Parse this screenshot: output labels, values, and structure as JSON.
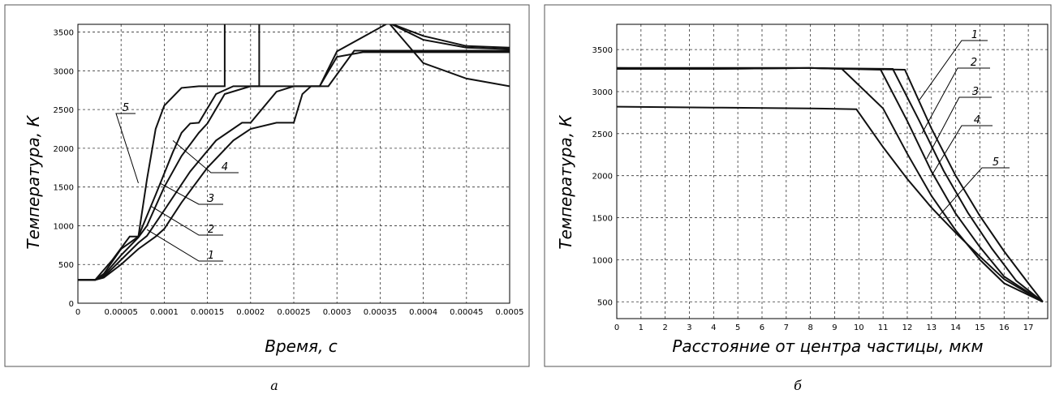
{
  "chart_data": [
    {
      "type": "line",
      "panel_label": "а",
      "title": "",
      "xlabel": "Время, с",
      "ylabel": "Температура, К",
      "xlim": [
        0,
        0.0005
      ],
      "ylim": [
        0,
        3600
      ],
      "xticks": [
        "0",
        "0.00005",
        "0.0001",
        "0.00015",
        "0.0002",
        "0.00025",
        "0.0003",
        "0.00035",
        "0.0004",
        "0.00045",
        "0.0005"
      ],
      "yticks": [
        "0",
        "500",
        "1000",
        "1500",
        "2000",
        "2500",
        "3000",
        "3500"
      ],
      "grid": true,
      "series": [
        {
          "name": "1",
          "x": [
            0,
            2e-05,
            3e-05,
            5e-05,
            7e-05,
            9e-05,
            0.0001,
            0.00012,
            0.00015,
            0.00018,
            0.0002,
            0.00023,
            0.00025,
            0.00026,
            0.00027,
            0.00029,
            0.00032,
            0.0004,
            0.0005
          ],
          "y": [
            300,
            300,
            330,
            500,
            700,
            860,
            960,
            1300,
            1750,
            2100,
            2250,
            2330,
            2330,
            2700,
            2800,
            2800,
            3260,
            3260,
            3260
          ]
        },
        {
          "name": "2",
          "x": [
            0,
            2e-05,
            3e-05,
            5e-05,
            7e-05,
            8e-05,
            0.0001,
            0.00013,
            0.00016,
            0.00019,
            0.0002,
            0.00023,
            0.00025,
            0.00028,
            0.0003,
            0.00033,
            0.0004,
            0.0005
          ],
          "y": [
            300,
            300,
            340,
            560,
            780,
            870,
            1200,
            1700,
            2100,
            2330,
            2330,
            2730,
            2800,
            2800,
            3180,
            3240,
            3240,
            3240
          ]
        },
        {
          "name": "3",
          "x": [
            0,
            2e-05,
            3e-05,
            5e-05,
            7e-05,
            8e-05,
            0.0001,
            0.00012,
            0.00014,
            0.00015,
            0.00017,
            0.0002,
            0.00025,
            0.00028,
            0.0003,
            0.00036,
            0.0004,
            0.00045,
            0.0005
          ],
          "y": [
            300,
            300,
            360,
            620,
            850,
            1000,
            1500,
            1900,
            2200,
            2320,
            2700,
            2800,
            2800,
            2800,
            3250,
            3620,
            3400,
            3300,
            3280
          ]
        },
        {
          "name": "4",
          "x": [
            0,
            2e-05,
            3e-05,
            5e-05,
            7e-05,
            9e-05,
            0.00011,
            0.00012,
            0.00013,
            0.00014,
            0.00016,
            0.00018,
            0.0002,
            0.00021,
            0.00021,
            0.00036,
            0.0004,
            0.00045,
            0.0005
          ],
          "y": [
            300,
            300,
            380,
            700,
            860,
            1400,
            1950,
            2200,
            2320,
            2330,
            2700,
            2800,
            2800,
            2800,
            3620,
            3620,
            3450,
            3320,
            3300
          ]
        },
        {
          "name": "5",
          "x": [
            0,
            2e-05,
            4e-05,
            6e-05,
            7e-05,
            8e-05,
            9e-05,
            0.0001,
            0.00012,
            0.00014,
            0.00017,
            0.00017,
            0.00036,
            0.0004,
            0.00045,
            0.0005
          ],
          "y": [
            300,
            300,
            560,
            860,
            860,
            1600,
            2250,
            2550,
            2780,
            2800,
            2800,
            3620,
            3620,
            3100,
            2900,
            2800
          ]
        }
      ],
      "curve_labels": [
        "5",
        "4",
        "3",
        "2",
        "1"
      ]
    },
    {
      "type": "line",
      "panel_label": "б",
      "title": "",
      "xlabel": "Расстояние от центра частицы, мкм",
      "ylabel": "Температура, К",
      "xlim": [
        0,
        17.8
      ],
      "ylim": [
        300,
        3800
      ],
      "xticks": [
        "0",
        "1",
        "2",
        "3",
        "4",
        "5",
        "6",
        "7",
        "8",
        "9",
        "10",
        "11",
        "12",
        "13",
        "14",
        "15",
        "16",
        "17"
      ],
      "yticks": [
        "500",
        "1000",
        "1500",
        "2000",
        "2500",
        "3000",
        "3500"
      ],
      "grid": true,
      "series": [
        {
          "name": "1",
          "x": [
            0,
            4,
            8,
            11.9,
            13,
            14,
            15,
            16,
            17,
            17.6
          ],
          "y": [
            3280,
            3270,
            3280,
            3260,
            2560,
            2000,
            1520,
            1100,
            720,
            500
          ]
        },
        {
          "name": "2",
          "x": [
            0,
            4,
            8,
            11.4,
            12.5,
            13.5,
            14.5,
            15.5,
            16.5,
            17.6
          ],
          "y": [
            3270,
            3270,
            3280,
            3270,
            2650,
            2060,
            1560,
            1130,
            750,
            500
          ]
        },
        {
          "name": "3",
          "x": [
            0,
            4,
            8,
            10.9,
            12,
            13,
            14,
            15,
            16,
            17.6
          ],
          "y": [
            3280,
            3280,
            3280,
            3260,
            2650,
            2050,
            1550,
            1150,
            800,
            500
          ]
        },
        {
          "name": "4",
          "x": [
            0,
            4,
            8,
            9.3,
            11,
            12,
            13,
            14,
            15,
            16,
            17.6
          ],
          "y": [
            3280,
            3280,
            3280,
            3270,
            2800,
            2260,
            1760,
            1350,
            1000,
            720,
            500
          ]
        },
        {
          "name": "5",
          "x": [
            0,
            4,
            8,
            9.9,
            11,
            12,
            13,
            14,
            15,
            16,
            17.6
          ],
          "y": [
            2820,
            2810,
            2800,
            2790,
            2340,
            1960,
            1620,
            1320,
            1040,
            770,
            500
          ]
        }
      ],
      "curve_labels": [
        "1",
        "2",
        "3",
        "4",
        "5"
      ]
    }
  ]
}
